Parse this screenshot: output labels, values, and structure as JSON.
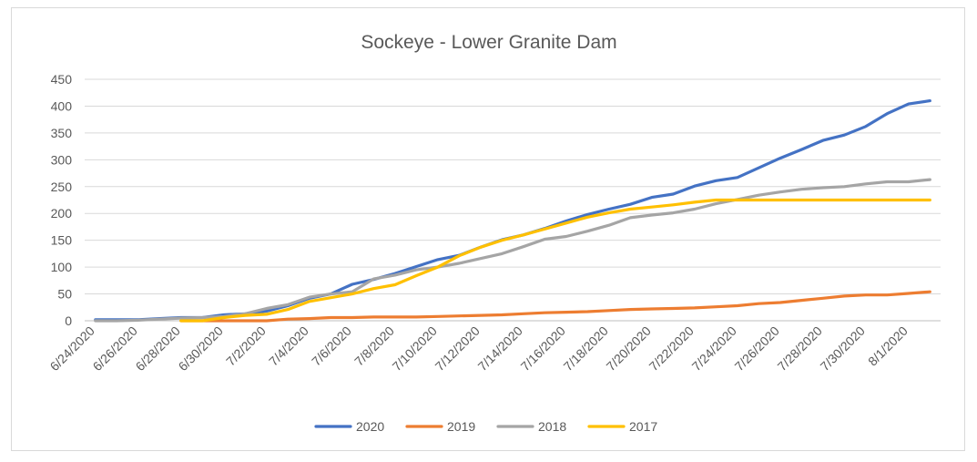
{
  "chart_data": {
    "type": "line",
    "title": "Sockeye - Lower Granite Dam",
    "xlabel": "",
    "ylabel": "",
    "ylim": [
      0,
      450
    ],
    "yticks": [
      0,
      50,
      100,
      150,
      200,
      250,
      300,
      350,
      400,
      450
    ],
    "x": [
      "6/24/2020",
      "6/25/2020",
      "6/26/2020",
      "6/27/2020",
      "6/28/2020",
      "6/29/2020",
      "6/30/2020",
      "7/1/2020",
      "7/2/2020",
      "7/3/2020",
      "7/4/2020",
      "7/5/2020",
      "7/6/2020",
      "7/7/2020",
      "7/8/2020",
      "7/9/2020",
      "7/10/2020",
      "7/11/2020",
      "7/12/2020",
      "7/13/2020",
      "7/14/2020",
      "7/15/2020",
      "7/16/2020",
      "7/17/2020",
      "7/18/2020",
      "7/19/2020",
      "7/20/2020",
      "7/21/2020",
      "7/22/2020",
      "7/23/2020",
      "7/24/2020",
      "7/25/2020",
      "7/26/2020",
      "7/27/2020",
      "7/28/2020",
      "7/29/2020",
      "7/30/2020",
      "7/31/2020",
      "8/1/2020",
      "8/2/2020"
    ],
    "xtick_labels": [
      "6/24/2020",
      "6/26/2020",
      "6/28/2020",
      "6/30/2020",
      "7/2/2020",
      "7/4/2020",
      "7/6/2020",
      "7/8/2020",
      "7/10/2020",
      "7/12/2020",
      "7/14/2020",
      "7/16/2020",
      "7/18/2020",
      "7/20/2020",
      "7/22/2020",
      "7/24/2020",
      "7/26/2020",
      "7/28/2020",
      "7/30/2020",
      "8/1/2020"
    ],
    "grid": "horizontal",
    "legend": "bottom",
    "series": [
      {
        "name": "2020",
        "color": "#4472c4",
        "values": [
          2,
          2,
          2,
          4,
          6,
          6,
          11,
          13,
          18,
          28,
          42,
          50,
          68,
          77,
          88,
          101,
          114,
          122,
          137,
          151,
          160,
          172,
          186,
          198,
          208,
          217,
          230,
          236,
          251,
          261,
          267,
          285,
          303,
          319,
          336,
          346,
          362,
          386,
          404,
          410
        ]
      },
      {
        "name": "2019",
        "color": "#ed7d31",
        "values": [
          null,
          null,
          null,
          null,
          0,
          0,
          0,
          0,
          0,
          3,
          4,
          6,
          6,
          7,
          7,
          7,
          8,
          9,
          10,
          11,
          13,
          15,
          16,
          17,
          19,
          21,
          22,
          23,
          24,
          26,
          28,
          32,
          34,
          38,
          42,
          46,
          48,
          48,
          51,
          54
        ]
      },
      {
        "name": "2018",
        "color": "#a5a5a5",
        "values": [
          0,
          0,
          1,
          3,
          5,
          6,
          8,
          13,
          23,
          30,
          44,
          50,
          54,
          78,
          85,
          95,
          100,
          107,
          116,
          125,
          138,
          152,
          157,
          167,
          178,
          192,
          197,
          201,
          208,
          218,
          226,
          234,
          240,
          245,
          248,
          250,
          255,
          259,
          259,
          263
        ]
      },
      {
        "name": "2017",
        "color": "#ffc000",
        "values": [
          null,
          null,
          null,
          null,
          0,
          0,
          6,
          10,
          12,
          21,
          36,
          43,
          50,
          60,
          67,
          84,
          100,
          121,
          137,
          150,
          160,
          171,
          182,
          193,
          201,
          208,
          212,
          216,
          221,
          225,
          225,
          225,
          225,
          225,
          225,
          225,
          225,
          225,
          225,
          225
        ]
      }
    ]
  }
}
